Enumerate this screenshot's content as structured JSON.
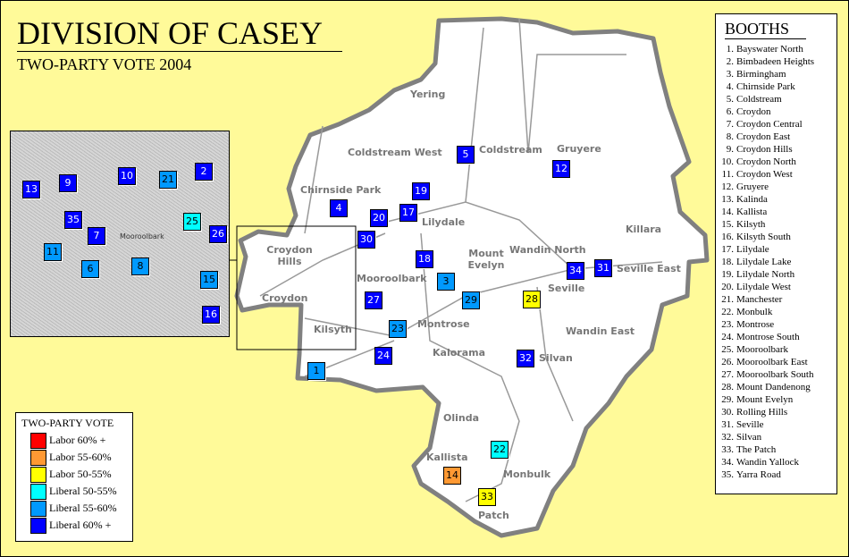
{
  "title": "DIVISION OF CASEY",
  "subtitle": "TWO-PARTY VOTE 2004",
  "colors": {
    "background": "#FFFA99",
    "labor_60": "#FF0000",
    "labor_55_60": "#FF9933",
    "labor_50_55": "#FFFF00",
    "liberal_50_55": "#00FFFF",
    "liberal_55_60": "#0099FF",
    "liberal_60": "#0000FF"
  },
  "legend": {
    "title": "TWO-PARTY VOTE",
    "items": [
      {
        "label": "Labor 60% +",
        "key": "labor_60"
      },
      {
        "label": "Labor 55-60%",
        "key": "labor_55_60"
      },
      {
        "label": "Labor 50-55%",
        "key": "labor_50_55"
      },
      {
        "label": "Liberal 50-55%",
        "key": "liberal_50_55"
      },
      {
        "label": "Liberal 55-60%",
        "key": "liberal_55_60"
      },
      {
        "label": "Liberal 60% +",
        "key": "liberal_60"
      }
    ]
  },
  "booths_panel": {
    "title": "BOOTHS",
    "items": [
      {
        "n": "1.",
        "name": "Bayswater North",
        "result": "liberal_55_60"
      },
      {
        "n": "2.",
        "name": "Bimbadeen Heights",
        "result": "liberal_60"
      },
      {
        "n": "3.",
        "name": "Birmingham",
        "result": "liberal_55_60"
      },
      {
        "n": "4.",
        "name": "Chirnside Park",
        "result": "liberal_60"
      },
      {
        "n": "5.",
        "name": "Coldstream",
        "result": "liberal_60"
      },
      {
        "n": "6.",
        "name": "Croydon",
        "result": "liberal_55_60"
      },
      {
        "n": "7.",
        "name": "Croydon Central",
        "result": "liberal_60"
      },
      {
        "n": "8.",
        "name": "Croydon East",
        "result": "liberal_55_60"
      },
      {
        "n": "9.",
        "name": "Croydon Hills",
        "result": "liberal_60"
      },
      {
        "n": "10.",
        "name": "Croydon North",
        "result": "liberal_60"
      },
      {
        "n": "11.",
        "name": "Croydon West",
        "result": "liberal_55_60"
      },
      {
        "n": "12.",
        "name": "Gruyere",
        "result": "liberal_60"
      },
      {
        "n": "13.",
        "name": "Kalinda",
        "result": "liberal_60"
      },
      {
        "n": "14.",
        "name": "Kallista",
        "result": "labor_55_60"
      },
      {
        "n": "15.",
        "name": "Kilsyth",
        "result": "liberal_55_60"
      },
      {
        "n": "16.",
        "name": "Kilsyth South",
        "result": "liberal_60"
      },
      {
        "n": "17.",
        "name": "Lilydale",
        "result": "liberal_60"
      },
      {
        "n": "18.",
        "name": "Lilydale Lake",
        "result": "liberal_60"
      },
      {
        "n": "19.",
        "name": "Lilydale North",
        "result": "liberal_60"
      },
      {
        "n": "20.",
        "name": "Lilydale West",
        "result": "liberal_60"
      },
      {
        "n": "21.",
        "name": "Manchester",
        "result": "liberal_55_60"
      },
      {
        "n": "22.",
        "name": "Monbulk",
        "result": "liberal_50_55"
      },
      {
        "n": "23.",
        "name": "Montrose",
        "result": "liberal_55_60"
      },
      {
        "n": "24.",
        "name": "Montrose South",
        "result": "liberal_60"
      },
      {
        "n": "25.",
        "name": "Mooroolbark",
        "result": "liberal_50_55"
      },
      {
        "n": "26.",
        "name": "Mooroolbark East",
        "result": "liberal_60"
      },
      {
        "n": "27.",
        "name": "Mooroolbark South",
        "result": "liberal_60"
      },
      {
        "n": "28.",
        "name": "Mount Dandenong",
        "result": "labor_50_55"
      },
      {
        "n": "29.",
        "name": "Mount Evelyn",
        "result": "liberal_55_60"
      },
      {
        "n": "30.",
        "name": "Rolling Hills",
        "result": "liberal_60"
      },
      {
        "n": "31.",
        "name": "Seville",
        "result": "liberal_60"
      },
      {
        "n": "32.",
        "name": "Silvan",
        "result": "liberal_60"
      },
      {
        "n": "33.",
        "name": "The Patch",
        "result": "labor_50_55"
      },
      {
        "n": "34.",
        "name": "Wandin Yallock",
        "result": "liberal_60"
      },
      {
        "n": "35.",
        "name": "Yarra Road",
        "result": "liberal_60"
      }
    ]
  },
  "place_labels": [
    "Yering",
    "Coldstream West",
    "Coldstream",
    "Gruyere",
    "Chirnside Park",
    "Lilydale",
    "Croydon Hills",
    "Croydon",
    "Kilsyth",
    "Mooroolbark",
    "Mount Evelyn",
    "Wandin North",
    "Killara",
    "Seville",
    "Seville East",
    "Montrose",
    "Kalorama",
    "Wandin East",
    "Silvan",
    "Olinda",
    "Kallista",
    "Monbulk",
    "Patch",
    "Mooroolbark"
  ]
}
